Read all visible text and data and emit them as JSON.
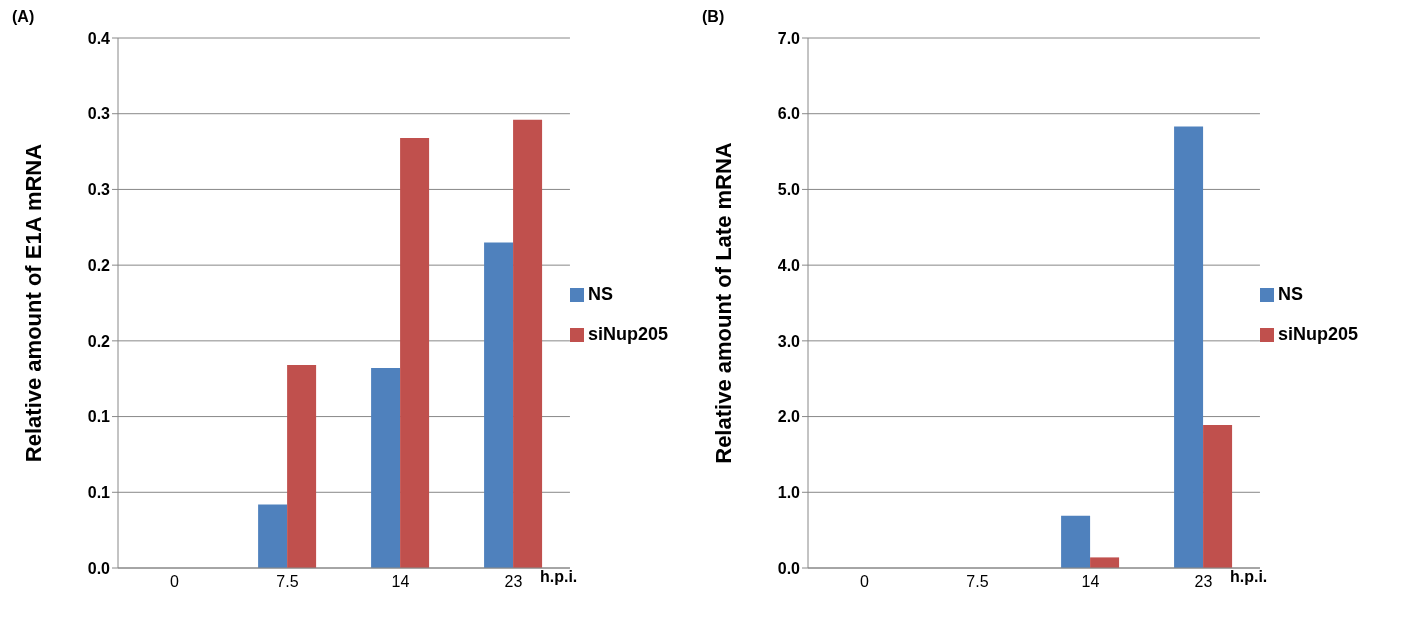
{
  "chart_data": [
    {
      "type": "bar",
      "title": "(A)",
      "categories": [
        "0",
        "7.5",
        "14",
        "23"
      ],
      "xlabel": "h.p.i.",
      "ylabel": "Relative amount of E1A mRNA",
      "series": [
        {
          "name": "NS",
          "color": "#4f81bd",
          "values": [
            0,
            0.042,
            0.132,
            0.215
          ]
        },
        {
          "name": "siNup205",
          "color": "#c0504d",
          "values": [
            0,
            0.134,
            0.284,
            0.296
          ]
        }
      ],
      "ylim": [
        0,
        0.35
      ],
      "yticks": [
        {
          "value": 0,
          "label": "0.0"
        },
        {
          "value": 0.05,
          "label": "0.1"
        },
        {
          "value": 0.1,
          "label": "0.1"
        },
        {
          "value": 0.15,
          "label": "0.2"
        },
        {
          "value": 0.2,
          "label": "0.2"
        },
        {
          "value": 0.25,
          "label": "0.3"
        },
        {
          "value": 0.3,
          "label": "0.3"
        },
        {
          "value": 0.35,
          "label": "0.4"
        }
      ],
      "grid": "y",
      "legend": "right"
    },
    {
      "type": "bar",
      "title": "(B)",
      "categories": [
        "0",
        "7.5",
        "14",
        "23"
      ],
      "xlabel": "h.p.i.",
      "ylabel": "Relative amount of Late mRNA",
      "series": [
        {
          "name": "NS",
          "color": "#4f81bd",
          "values": [
            null,
            null,
            0.69,
            5.83
          ]
        },
        {
          "name": "siNup205",
          "color": "#c0504d",
          "values": [
            null,
            null,
            0.14,
            1.89
          ]
        }
      ],
      "ylim": [
        0,
        7
      ],
      "yticks": [
        {
          "value": 0,
          "label": "0.0"
        },
        {
          "value": 1,
          "label": "1.0"
        },
        {
          "value": 2,
          "label": "2.0"
        },
        {
          "value": 3,
          "label": "3.0"
        },
        {
          "value": 4,
          "label": "4.0"
        },
        {
          "value": 5,
          "label": "5.0"
        },
        {
          "value": 6,
          "label": "6.0"
        },
        {
          "value": 7,
          "label": "7.0"
        }
      ],
      "grid": "y",
      "legend": "right"
    }
  ]
}
